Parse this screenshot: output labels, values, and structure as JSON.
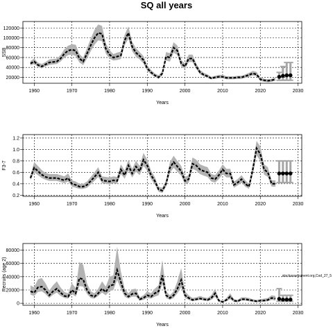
{
  "figure": {
    "title": "SQ all years"
  },
  "chart_data": [
    {
      "type": "line",
      "title": "",
      "xlabel": "Years",
      "ylabel": "SSB",
      "xlim": [
        1957,
        2031
      ],
      "ylim": [
        8000,
        133000
      ],
      "xticks": [
        1960,
        1970,
        1980,
        1990,
        2000,
        2010,
        2020,
        2030
      ],
      "yticks": [
        20000,
        40000,
        60000,
        80000,
        100000,
        120000
      ],
      "grid": true,
      "series": [
        {
          "style": "dashed-black-with-grey-band",
          "x": [
            1959,
            1960,
            1961,
            1962,
            1963,
            1964,
            1965,
            1966,
            1967,
            1968,
            1969,
            1970,
            1971,
            1972,
            1973,
            1974,
            1975,
            1976,
            1977,
            1978,
            1979,
            1980,
            1981,
            1982,
            1983,
            1984,
            1985,
            1986,
            1987,
            1988,
            1989,
            1990,
            1991,
            1992,
            1993,
            1994,
            1995,
            1996,
            1997,
            1998,
            1999,
            2000,
            2001,
            2002,
            2003,
            2004,
            2005,
            2006,
            2007,
            2008,
            2009,
            2010,
            2011,
            2012,
            2013,
            2014,
            2015,
            2016,
            2017,
            2018,
            2019,
            2020,
            2021,
            2022,
            2023,
            2024
          ],
          "y": [
            48000,
            52000,
            45000,
            42000,
            46000,
            50000,
            51000,
            52000,
            58000,
            68000,
            74000,
            76000,
            74000,
            58000,
            52000,
            68000,
            85000,
            100000,
            110000,
            108000,
            78000,
            66000,
            60000,
            62000,
            64000,
            95000,
            110000,
            82000,
            70000,
            63000,
            55000,
            38000,
            30000,
            24000,
            20000,
            28000,
            62000,
            60000,
            80000,
            74000,
            48000,
            42000,
            58000,
            58000,
            42000,
            30000,
            25000,
            22000,
            18000,
            20000,
            21000,
            21000,
            19000,
            19000,
            19000,
            20000,
            20000,
            22000,
            25000,
            28000,
            26000,
            16000,
            14000,
            13000,
            14000,
            16000
          ],
          "lower": [
            44000,
            47000,
            41000,
            38000,
            42000,
            45000,
            46000,
            47000,
            52000,
            60000,
            65000,
            66000,
            63000,
            50000,
            45000,
            58000,
            73000,
            86000,
            95000,
            93000,
            68000,
            58000,
            54000,
            55000,
            57000,
            85000,
            98000,
            73000,
            62000,
            56000,
            48000,
            33000,
            26000,
            21000,
            17000,
            24000,
            54000,
            52000,
            70000,
            65000,
            42000,
            37000,
            51000,
            51000,
            37000,
            26000,
            22000,
            19000,
            16000,
            17000,
            18000,
            18000,
            16000,
            16000,
            16000,
            17000,
            17000,
            19000,
            21000,
            24000,
            22000,
            13000,
            11000,
            10000,
            11000,
            13000
          ],
          "upper": [
            53000,
            58000,
            50000,
            47000,
            51000,
            56000,
            57000,
            58000,
            65000,
            77000,
            84000,
            87000,
            86000,
            67000,
            60000,
            79000,
            98000,
            116000,
            127000,
            124000,
            89000,
            75000,
            67000,
            70000,
            72000,
            106000,
            123000,
            92000,
            79000,
            71000,
            63000,
            44000,
            35000,
            28000,
            24000,
            33000,
            71000,
            69000,
            91000,
            84000,
            55000,
            48000,
            66000,
            66000,
            48000,
            35000,
            29000,
            26000,
            21000,
            23000,
            25000,
            25000,
            22000,
            22000,
            22000,
            23000,
            23000,
            26000,
            29000,
            33000,
            31000,
            20000,
            17000,
            16000,
            17000,
            20000
          ]
        },
        {
          "style": "projection-points",
          "x": [
            2025,
            2026,
            2027,
            2028
          ],
          "y": [
            21000,
            23000,
            24000,
            24000
          ],
          "lower": [
            14000,
            14000,
            14000,
            14000
          ],
          "upper": [
            30000,
            42000,
            50000,
            50000
          ]
        }
      ]
    },
    {
      "type": "line",
      "title": "",
      "xlabel": "Years",
      "ylabel": "F3-7",
      "xlim": [
        1957,
        2031
      ],
      "ylim": [
        0.18,
        1.26
      ],
      "xticks": [
        1960,
        1970,
        1980,
        1990,
        2000,
        2010,
        2020,
        2030
      ],
      "yticks": [
        0.2,
        0.4,
        0.6,
        0.8,
        1.0,
        1.2
      ],
      "ytick_labels": [
        "0.2",
        "0.4",
        "0.6",
        "0.8",
        "1.0",
        "1.2"
      ],
      "grid": true,
      "series": [
        {
          "style": "dashed-black-with-grey-band",
          "x": [
            1959,
            1960,
            1961,
            1962,
            1963,
            1964,
            1965,
            1966,
            1967,
            1968,
            1969,
            1970,
            1971,
            1972,
            1973,
            1974,
            1975,
            1976,
            1977,
            1978,
            1979,
            1980,
            1981,
            1982,
            1983,
            1984,
            1985,
            1986,
            1987,
            1988,
            1989,
            1990,
            1991,
            1992,
            1993,
            1994,
            1995,
            1996,
            1997,
            1998,
            1999,
            2000,
            2001,
            2002,
            2003,
            2004,
            2005,
            2006,
            2007,
            2008,
            2009,
            2010,
            2011,
            2012,
            2013,
            2014,
            2015,
            2016,
            2017,
            2018,
            2019,
            2020,
            2021,
            2022,
            2023,
            2024
          ],
          "y": [
            0.5,
            0.68,
            0.62,
            0.56,
            0.52,
            0.5,
            0.5,
            0.5,
            0.48,
            0.46,
            0.5,
            0.4,
            0.38,
            0.35,
            0.35,
            0.38,
            0.45,
            0.52,
            0.6,
            0.46,
            0.45,
            0.44,
            0.46,
            0.45,
            0.65,
            0.55,
            0.72,
            0.58,
            0.7,
            0.62,
            0.82,
            0.72,
            0.55,
            0.45,
            0.3,
            0.28,
            0.4,
            0.68,
            0.78,
            0.7,
            0.62,
            0.45,
            0.48,
            0.75,
            0.72,
            0.65,
            0.62,
            0.6,
            0.5,
            0.48,
            0.55,
            0.65,
            0.58,
            0.58,
            0.38,
            0.42,
            0.48,
            0.4,
            0.35,
            0.65,
            1.02,
            0.92,
            0.65,
            0.6,
            0.4,
            0.4
          ],
          "lower": [
            0.46,
            0.6,
            0.55,
            0.5,
            0.47,
            0.45,
            0.45,
            0.45,
            0.43,
            0.41,
            0.44,
            0.35,
            0.33,
            0.31,
            0.31,
            0.33,
            0.39,
            0.45,
            0.52,
            0.41,
            0.4,
            0.39,
            0.41,
            0.4,
            0.57,
            0.49,
            0.63,
            0.51,
            0.61,
            0.55,
            0.71,
            0.63,
            0.48,
            0.39,
            0.26,
            0.24,
            0.35,
            0.59,
            0.68,
            0.61,
            0.54,
            0.39,
            0.42,
            0.66,
            0.63,
            0.57,
            0.54,
            0.52,
            0.44,
            0.42,
            0.48,
            0.57,
            0.51,
            0.51,
            0.33,
            0.37,
            0.42,
            0.35,
            0.31,
            0.56,
            0.9,
            0.8,
            0.56,
            0.52,
            0.35,
            0.35
          ],
          "upper": [
            0.55,
            0.78,
            0.71,
            0.64,
            0.59,
            0.57,
            0.57,
            0.57,
            0.55,
            0.53,
            0.58,
            0.46,
            0.44,
            0.4,
            0.4,
            0.44,
            0.52,
            0.6,
            0.69,
            0.53,
            0.52,
            0.51,
            0.53,
            0.52,
            0.74,
            0.63,
            0.82,
            0.66,
            0.8,
            0.71,
            0.94,
            0.82,
            0.63,
            0.52,
            0.35,
            0.33,
            0.46,
            0.78,
            0.89,
            0.8,
            0.71,
            0.52,
            0.55,
            0.86,
            0.82,
            0.74,
            0.71,
            0.69,
            0.57,
            0.55,
            0.63,
            0.74,
            0.66,
            0.66,
            0.44,
            0.48,
            0.55,
            0.46,
            0.4,
            0.74,
            1.15,
            1.05,
            0.74,
            0.69,
            0.46,
            0.46
          ]
        },
        {
          "style": "projection-points",
          "x": [
            2025,
            2026,
            2027,
            2028
          ],
          "y": [
            0.58,
            0.58,
            0.58,
            0.58
          ],
          "lower": [
            0.42,
            0.42,
            0.42,
            0.42
          ],
          "upper": [
            0.8,
            0.8,
            0.8,
            0.8
          ]
        }
      ]
    },
    {
      "type": "line",
      "title": "",
      "xlabel": "Years",
      "ylabel": "Recruits (age 2)",
      "xlim": [
        1957,
        2031
      ],
      "ylim": [
        -3000,
        90000
      ],
      "xticks": [
        1960,
        1970,
        1980,
        1990,
        2000,
        2010,
        2020,
        2030
      ],
      "yticks": [
        0,
        20000,
        40000,
        60000,
        80000
      ],
      "grid": true,
      "annotation": "stockassessment.org,Cod_27_5",
      "series": [
        {
          "style": "dashed-black-with-grey-band",
          "x": [
            1959,
            1960,
            1961,
            1962,
            1963,
            1964,
            1965,
            1966,
            1967,
            1968,
            1969,
            1970,
            1971,
            1972,
            1973,
            1974,
            1975,
            1976,
            1977,
            1978,
            1979,
            1980,
            1981,
            1982,
            1983,
            1984,
            1985,
            1986,
            1987,
            1988,
            1989,
            1990,
            1991,
            1992,
            1993,
            1994,
            1995,
            1996,
            1997,
            1998,
            1999,
            2000,
            2001,
            2002,
            2003,
            2004,
            2005,
            2006,
            2007,
            2008,
            2009,
            2010,
            2011,
            2012,
            2013,
            2014,
            2015,
            2016,
            2017,
            2018,
            2019,
            2020,
            2021,
            2022,
            2023,
            2024
          ],
          "y": [
            18000,
            16000,
            24000,
            25000,
            20000,
            12000,
            18000,
            22000,
            16000,
            11000,
            10000,
            20000,
            15000,
            38000,
            36000,
            20000,
            12000,
            10000,
            15000,
            22000,
            17000,
            26000,
            28000,
            50000,
            32000,
            15000,
            10000,
            14000,
            15000,
            6000,
            8000,
            12000,
            10000,
            15000,
            18000,
            42000,
            12000,
            8000,
            12000,
            22000,
            35000,
            12000,
            8000,
            5000,
            6000,
            7000,
            6000,
            5000,
            8000,
            15000,
            4000,
            2000,
            5000,
            10000,
            4000,
            3000,
            6000,
            6000,
            5000,
            4000,
            3000,
            4000,
            4000,
            5000,
            8000,
            7000
          ],
          "lower": [
            13000,
            11000,
            17000,
            18000,
            14000,
            8000,
            13000,
            16000,
            11000,
            8000,
            7000,
            14000,
            10000,
            26000,
            25000,
            14000,
            8000,
            7000,
            11000,
            16000,
            12000,
            18000,
            20000,
            35000,
            22000,
            10000,
            7000,
            10000,
            10000,
            4000,
            5000,
            8000,
            7000,
            10000,
            12000,
            29000,
            8000,
            5000,
            8000,
            15000,
            24000,
            8000,
            5000,
            3000,
            4000,
            5000,
            4000,
            3000,
            5000,
            10000,
            2000,
            1000,
            3000,
            6000,
            2000,
            1500,
            4000,
            4000,
            3000,
            2000,
            1500,
            2000,
            2500,
            3000,
            5000,
            4000
          ],
          "upper": [
            27000,
            24000,
            36000,
            38000,
            30000,
            19000,
            27000,
            33000,
            24000,
            17000,
            15000,
            30000,
            23000,
            62000,
            58000,
            30000,
            18000,
            15000,
            22000,
            33000,
            25000,
            40000,
            42000,
            85000,
            48000,
            22000,
            15000,
            21000,
            22000,
            9000,
            12000,
            18000,
            15000,
            22000,
            27000,
            65000,
            18000,
            12000,
            18000,
            33000,
            53000,
            18000,
            12000,
            8000,
            9000,
            11000,
            9000,
            8000,
            12000,
            22000,
            6000,
            3000,
            8000,
            15000,
            6000,
            5000,
            9000,
            9000,
            8000,
            6000,
            5000,
            6000,
            7000,
            8000,
            12000,
            11000
          ]
        },
        {
          "style": "projection-points",
          "x": [
            2025,
            2026,
            2027,
            2028
          ],
          "y": [
            6500,
            5500,
            5500,
            5500
          ],
          "lower": [
            3000,
            3000,
            3000,
            3000
          ],
          "upper": [
            22000,
            12000,
            12000,
            12000
          ]
        }
      ]
    }
  ]
}
